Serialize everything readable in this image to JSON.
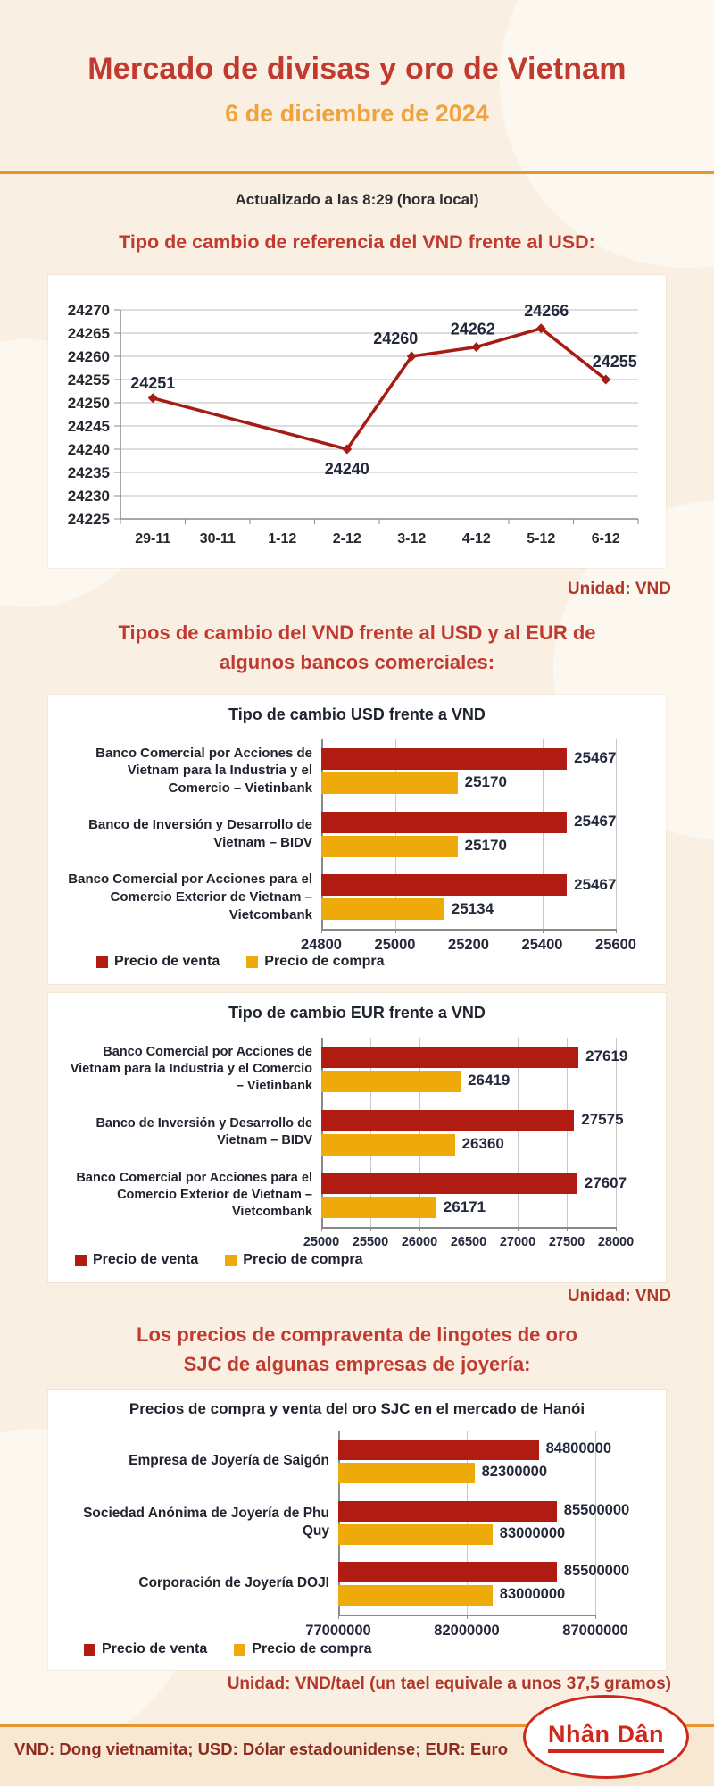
{
  "header": {
    "title": "Mercado de divisas y oro de Vietnam",
    "date": "6 de diciembre de 2024",
    "updated": "Actualizado a las 8:29 (hora local)"
  },
  "sections": {
    "reference": {
      "heading": "Tipo de cambio de referencia del VND frente al USD:",
      "unit": "Unidad: VND"
    },
    "banks": {
      "heading": "Tipos de cambio del VND frente al USD y al EUR de\nalgunos bancos comerciales:",
      "unit": "Unidad: VND"
    },
    "gold": {
      "heading": "Los precios de compraventa de lingotes de oro\nSJC de algunas empresas de joyería:",
      "unit": "Unidad: VND/tael (un tael equivale a unos 37,5 gramos)"
    }
  },
  "footer": {
    "note": "VND: Dong vietnamita; USD: Dólar estadounidense; EUR: Euro",
    "logo": "Nhân Dân"
  },
  "colors": {
    "accent_red": "#c03a2f",
    "accent_orange": "#e8942c",
    "sell": "#b01c12",
    "buy": "#eeaa0b",
    "line": "#a61c14"
  },
  "chart_data": [
    {
      "id": "reference_line",
      "type": "line",
      "title": "",
      "categories": [
        "29-11",
        "30-11",
        "1-12",
        "2-12",
        "3-12",
        "4-12",
        "5-12",
        "6-12"
      ],
      "values": [
        24251,
        null,
        null,
        24240,
        24260,
        24262,
        24266,
        24255
      ],
      "ylim": [
        24225,
        24270
      ],
      "ytick_step": 5,
      "grid": true,
      "line_color": "#a61c14",
      "legend_position": "none"
    },
    {
      "id": "usd_bars",
      "type": "bar",
      "title": "Tipo de cambio USD frente a VND",
      "categories": [
        "Banco Comercial por Acciones de\nVietnam para la Industria y el\nComercio – Vietinbank",
        "Banco de Inversión y Desarrollo de\nVietnam – BIDV",
        "Banco Comercial por Acciones para el\nComercio Exterior de Vietnam –\nVietcombank"
      ],
      "series": [
        {
          "name": "Precio de venta",
          "color": "#b01c12",
          "values": [
            25467,
            25467,
            25467
          ]
        },
        {
          "name": "Precio de compra",
          "color": "#eeaa0b",
          "values": [
            25170,
            25170,
            25134
          ]
        }
      ],
      "xlim": [
        24800,
        25600
      ],
      "xticks": [
        24800,
        25000,
        25200,
        25400,
        25600
      ],
      "grid": true,
      "legend_position": "bottom-left"
    },
    {
      "id": "eur_bars",
      "type": "bar",
      "title": "Tipo de cambio EUR frente a VND",
      "categories": [
        "Banco Comercial por Acciones de\nVietnam para la Industria y el Comercio\n– Vietinbank",
        "Banco de Inversión y Desarrollo de\nVietnam – BIDV",
        "Banco Comercial por Acciones para el\nComercio Exterior de Vietnam –\nVietcombank"
      ],
      "series": [
        {
          "name": "Precio de venta",
          "color": "#b01c12",
          "values": [
            27619,
            27575,
            27607
          ]
        },
        {
          "name": "Precio de compra",
          "color": "#eeaa0b",
          "values": [
            26419,
            26360,
            26171
          ]
        }
      ],
      "xlim": [
        25000,
        28000
      ],
      "xticks": [
        25000,
        25500,
        26000,
        26500,
        27000,
        27500,
        28000
      ],
      "grid": true,
      "legend_position": "bottom-left"
    },
    {
      "id": "gold_bars",
      "type": "bar",
      "title": "Precios de compra y venta del oro SJC en el mercado de Hanói",
      "categories": [
        "Empresa de Joyería de Saigón",
        "Sociedad Anónima de Joyería de Phu Quy",
        "Corporación de Joyería DOJI"
      ],
      "series": [
        {
          "name": "Precio de venta",
          "color": "#b01c12",
          "values": [
            84800000,
            85500000,
            85500000
          ]
        },
        {
          "name": "Precio de compra",
          "color": "#eeaa0b",
          "values": [
            82300000,
            83000000,
            83000000
          ]
        }
      ],
      "xlim": [
        77000000,
        87000000
      ],
      "xticks": [
        77000000,
        82000000,
        87000000
      ],
      "grid": true,
      "legend_position": "bottom-left"
    }
  ]
}
